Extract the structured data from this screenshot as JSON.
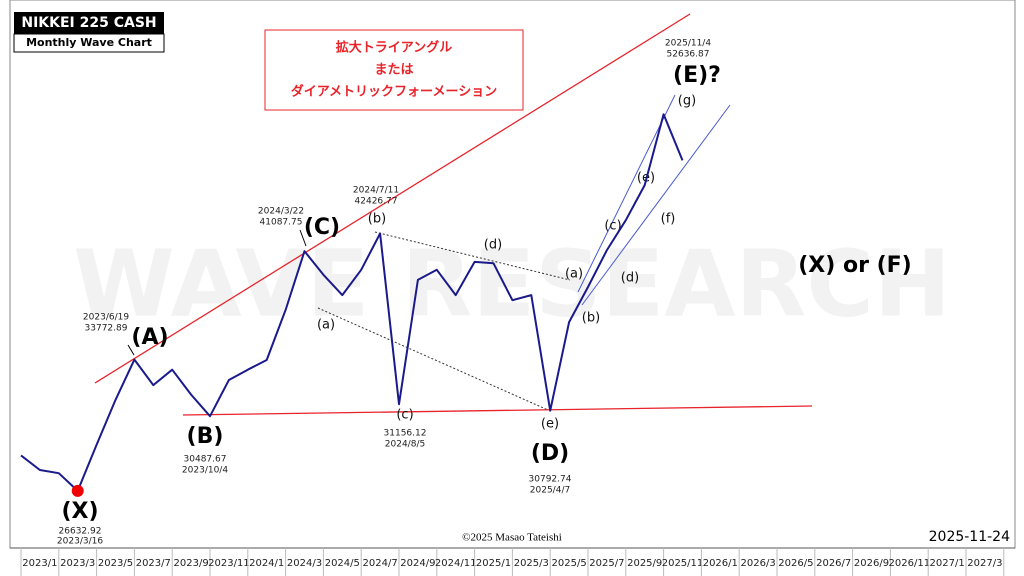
{
  "chart_data": {
    "type": "line",
    "title": "NIKKEI 225 CASH",
    "subtitle": "Monthly Wave Chart",
    "pattern_note": [
      "拡大トライアングル",
      "または",
      "ダイアメトリックフォーメーション"
    ],
    "categories": [
      null,
      "2023/1",
      null,
      "2023/3",
      null,
      "2023/5",
      null,
      "2023/7",
      null,
      "2023/9",
      null,
      "2023/11",
      null,
      "2024/1",
      null,
      "2024/3",
      null,
      "2024/5",
      null,
      "2024/7",
      null,
      "2024/9",
      null,
      "2024/11",
      null,
      "2025/1",
      null,
      "2025/3",
      null,
      "2025/5",
      null,
      "2025/7",
      null,
      "2025/9",
      null,
      "2025/11",
      null,
      "2026/1",
      null,
      "2026/3",
      null,
      "2026/5",
      null,
      "2026/7",
      null,
      "2026/9",
      null,
      "2026/11",
      null,
      "2027/1",
      null,
      "2027/3",
      null
    ],
    "values": [
      28400,
      27660,
      27500,
      26632.92,
      28950,
      31400,
      33772.89,
      32250,
      33160,
      31700,
      30487.67,
      32550,
      33160,
      33750,
      36950,
      41087.75,
      39370,
      37950,
      39730,
      42426.77,
      31156.12,
      39010,
      39730,
      37950,
      40300,
      40200,
      37600,
      37950,
      30792.74,
      36140,
      38510,
      41170,
      43460,
      46310,
      52636.87,
      48420,
      null,
      null,
      null,
      null,
      null,
      null,
      null,
      null,
      null,
      null,
      null,
      null,
      null,
      null,
      null,
      null,
      null
    ],
    "color": "#1a1a8c",
    "log_scale": true,
    "ylim": [
      24020,
      64720
    ],
    "wave_labels": [
      "(X)",
      "(A)",
      "(B)",
      "(C)",
      "(D)",
      "(E)?",
      "(X) or (F)"
    ],
    "sub_wave_labels": [
      "(a)",
      "(b)",
      "(c)",
      "(d)",
      "(e)",
      "(a)",
      "(b)",
      "(c)",
      "(d)",
      "(e)",
      "(f)",
      "(g)"
    ],
    "point_dates": [
      "2023/3/16",
      "2023/6/19",
      "2023/10/4",
      "2024/3/22",
      "2024/7/11",
      "2024/8/5",
      "2025/4/7",
      "2025/11/4"
    ],
    "watermark": "WAVE RESEARCH",
    "copyright": "©2025 Masao Tateishi",
    "date": "2025-11-24"
  }
}
